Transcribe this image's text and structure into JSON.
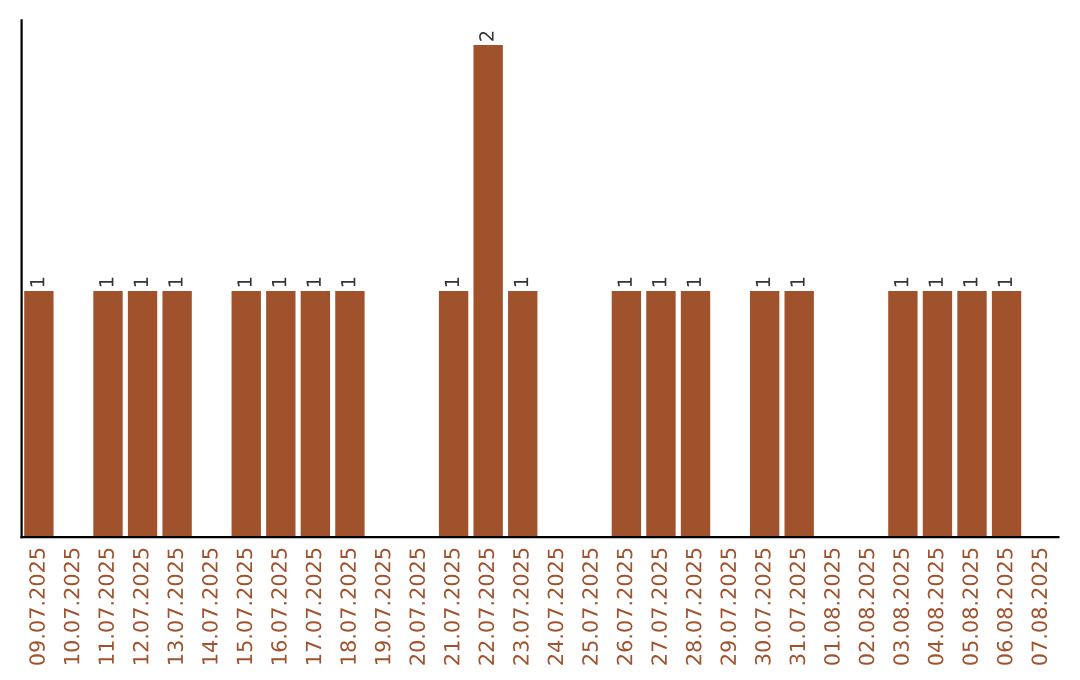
{
  "chart_data": {
    "type": "bar",
    "categories": [
      "09.07.2025",
      "10.07.2025",
      "11.07.2025",
      "12.07.2025",
      "13.07.2025",
      "14.07.2025",
      "15.07.2025",
      "16.07.2025",
      "17.07.2025",
      "18.07.2025",
      "19.07.2025",
      "20.07.2025",
      "21.07.2025",
      "22.07.2025",
      "23.07.2025",
      "24.07.2025",
      "25.07.2025",
      "26.07.2025",
      "27.07.2025",
      "28.07.2025",
      "29.07.2025",
      "30.07.2025",
      "31.07.2025",
      "01.08.2025",
      "02.08.2025",
      "03.08.2025",
      "04.08.2025",
      "05.08.2025",
      "06.08.2025",
      "07.08.2025"
    ],
    "values": [
      1,
      0,
      1,
      1,
      1,
      0,
      1,
      1,
      1,
      1,
      0,
      0,
      1,
      2,
      1,
      0,
      0,
      1,
      1,
      1,
      0,
      1,
      1,
      0,
      0,
      1,
      1,
      1,
      1,
      0
    ],
    "value_labels": [
      "1",
      null,
      "1",
      "1",
      "1",
      null,
      "1",
      "1",
      "1",
      "1",
      null,
      null,
      "1",
      "2",
      "1",
      null,
      null,
      "1",
      "1",
      "1",
      null,
      "1",
      "1",
      null,
      null,
      "1",
      "1",
      "1",
      "1",
      null
    ],
    "color": "#a0522d",
    "tick_labels": "x",
    "grid": false,
    "legend": false
  }
}
